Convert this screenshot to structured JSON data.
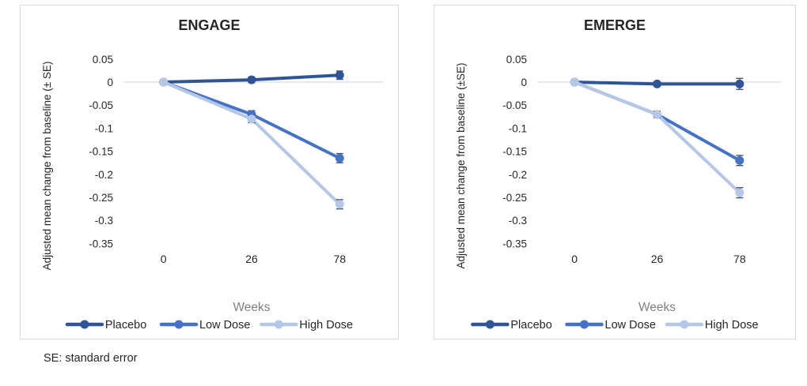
{
  "footer": {
    "note": "SE: standard error"
  },
  "colors": {
    "placebo": "#2F5597",
    "low_dose": "#4472C4",
    "high_dose": "#B4C7E7",
    "error_bar": "#44546A",
    "gridline": "#D9D9D9",
    "card_border": "#D9D9D9",
    "text": "#262626",
    "axis_title_gray": "#808080"
  },
  "chart_data": [
    {
      "type": "line",
      "title": "ENGAGE",
      "xlabel": "Weeks",
      "ylabel": "Adjusted mean change from baseline (± SE)",
      "x": [
        0,
        26,
        78
      ],
      "yticks": [
        0.05,
        0,
        -0.05,
        -0.1,
        -0.15,
        -0.2,
        -0.25,
        -0.3,
        -0.35
      ],
      "ylim": [
        -0.385,
        0.07
      ],
      "grid": "zero-line-only",
      "legend_position": "bottom",
      "error_bars": true,
      "series": [
        {
          "name": "Placebo",
          "color": "#2F5597",
          "values": [
            0,
            0.005,
            0.015
          ],
          "se": [
            0,
            0.006,
            0.009
          ]
        },
        {
          "name": "Low Dose",
          "color": "#4472C4",
          "values": [
            0,
            -0.07,
            -0.165
          ],
          "se": [
            0,
            0.008,
            0.01
          ]
        },
        {
          "name": "High Dose",
          "color": "#B4C7E7",
          "values": [
            0,
            -0.08,
            -0.265
          ],
          "se": [
            0,
            0.008,
            0.01
          ]
        }
      ]
    },
    {
      "type": "line",
      "title": "EMERGE",
      "xlabel": "Weeks",
      "ylabel": "Adjusted mean change from baseline (±SE)",
      "x": [
        0,
        26,
        78
      ],
      "yticks": [
        0.05,
        0,
        -0.05,
        -0.1,
        -0.15,
        -0.2,
        -0.25,
        -0.3,
        -0.35
      ],
      "ylim": [
        -0.385,
        0.07
      ],
      "grid": "zero-line-only",
      "legend_position": "bottom",
      "error_bars": true,
      "series": [
        {
          "name": "Placebo",
          "color": "#2F5597",
          "values": [
            0,
            -0.004,
            -0.004
          ],
          "se": [
            0,
            0.005,
            0.012
          ]
        },
        {
          "name": "Low Dose",
          "color": "#4472C4",
          "values": [
            0,
            -0.07,
            -0.17
          ],
          "se": [
            0,
            0.007,
            0.011
          ]
        },
        {
          "name": "High Dose",
          "color": "#B4C7E7",
          "values": [
            0,
            -0.07,
            -0.24
          ],
          "se": [
            0,
            0.007,
            0.011
          ]
        }
      ]
    }
  ]
}
